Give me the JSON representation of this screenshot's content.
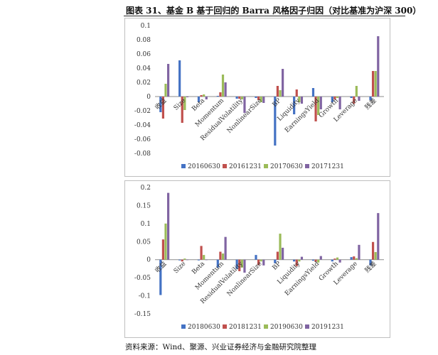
{
  "title": "图表 31、基金 B 基于回归的 Barra 风格因子归因（对比基准为沪深 300）",
  "source": "资料来源：Wind、聚源、兴业证券经济与金融研究院整理",
  "chart_data": [
    {
      "type": "bar",
      "categories": [
        "收益",
        "Size",
        "Beta",
        "Momentum",
        "ResidualVolatility",
        "NonlinearSize",
        "BP",
        "Liquidity",
        "EarningsYield",
        "Growth",
        "Leverage",
        "残差"
      ],
      "ylim": [
        -0.08,
        0.1
      ],
      "yticks": [
        -0.08,
        -0.06,
        -0.04,
        -0.02,
        0,
        0.02,
        0.04,
        0.06,
        0.08,
        0.1
      ],
      "ytick_labels": [
        "-0.08",
        "-0.06",
        "-0.04",
        "-0.02",
        "0",
        "0.02",
        "0.04",
        "0.06",
        "0.08",
        "0.1"
      ],
      "legend_position": "bottom",
      "series": [
        {
          "name": "20160630",
          "color": "#4472C4",
          "values": [
            -0.022,
            0.051,
            -0.008,
            0.001,
            -0.003,
            -0.002,
            -0.069,
            -0.025,
            0.012,
            -0.008,
            -0.002,
            -0.005
          ]
        },
        {
          "name": "20161231",
          "color": "#C0504D",
          "values": [
            -0.031,
            -0.037,
            0.002,
            0.006,
            -0.003,
            -0.005,
            0.015,
            0.01,
            -0.035,
            -0.004,
            -0.01,
            0.036
          ]
        },
        {
          "name": "20170630",
          "color": "#9BBB59",
          "values": [
            0.018,
            -0.019,
            0.003,
            0.031,
            -0.004,
            -0.008,
            0.009,
            -0.008,
            -0.026,
            -0.002,
            0.015,
            0.036
          ]
        },
        {
          "name": "20171231",
          "color": "#8064A2",
          "values": [
            0.046,
            -0.001,
            -0.004,
            0.02,
            -0.023,
            -0.009,
            0.039,
            -0.01,
            -0.018,
            -0.018,
            -0.006,
            0.085
          ]
        }
      ]
    },
    {
      "type": "bar",
      "categories": [
        "收益",
        "Size",
        "Beta",
        "Momentum",
        "ResidualVolatility",
        "NonlinearSize",
        "BP",
        "Liquidity",
        "EarningsYield",
        "Growth",
        "Leverage",
        "残差"
      ],
      "ylim": [
        -0.15,
        0.2
      ],
      "yticks": [
        -0.15,
        -0.1,
        -0.05,
        0,
        0.05,
        0.1,
        0.15,
        0.2
      ],
      "ytick_labels": [
        "-0.15",
        "-0.1",
        "-0.05",
        "0",
        "0.05",
        "0.1",
        "0.15",
        "0.2"
      ],
      "legend_position": "bottom",
      "series": [
        {
          "name": "20180630",
          "color": "#4472C4",
          "values": [
            -0.098,
            -0.002,
            -0.002,
            -0.022,
            -0.026,
            0.013,
            -0.01,
            -0.005,
            -0.003,
            -0.005,
            0.007,
            -0.016
          ]
        },
        {
          "name": "20181231",
          "color": "#C0504D",
          "values": [
            0.056,
            -0.005,
            0.038,
            0.022,
            -0.032,
            -0.015,
            0.022,
            -0.018,
            -0.006,
            0.003,
            0.009,
            0.049
          ]
        },
        {
          "name": "20190630",
          "color": "#9BBB59",
          "values": [
            0.1,
            0.003,
            0.013,
            0.017,
            -0.022,
            -0.005,
            0.072,
            -0.005,
            -0.008,
            0.006,
            0.004,
            0.021
          ]
        },
        {
          "name": "20191231",
          "color": "#8064A2",
          "values": [
            0.185,
            0.0,
            -0.001,
            0.063,
            -0.036,
            -0.016,
            0.033,
            0.008,
            0.01,
            -0.008,
            0.041,
            0.129
          ]
        }
      ]
    }
  ]
}
